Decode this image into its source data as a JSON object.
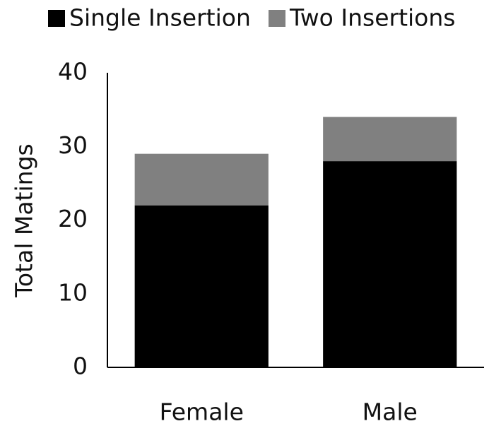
{
  "chart_data": {
    "type": "stacked_bar",
    "y_label": "Total Matings",
    "categories": [
      "Female",
      "Male"
    ],
    "series": [
      {
        "name": "Single Insertion",
        "color": "#000000",
        "values": [
          22,
          28
        ]
      },
      {
        "name": "Two Insertions",
        "color": "#808080",
        "values": [
          7,
          6
        ]
      }
    ],
    "ylim": [
      0,
      40
    ],
    "yticks": [
      0,
      10,
      20,
      30,
      40
    ],
    "grid": false,
    "legend": "top"
  }
}
